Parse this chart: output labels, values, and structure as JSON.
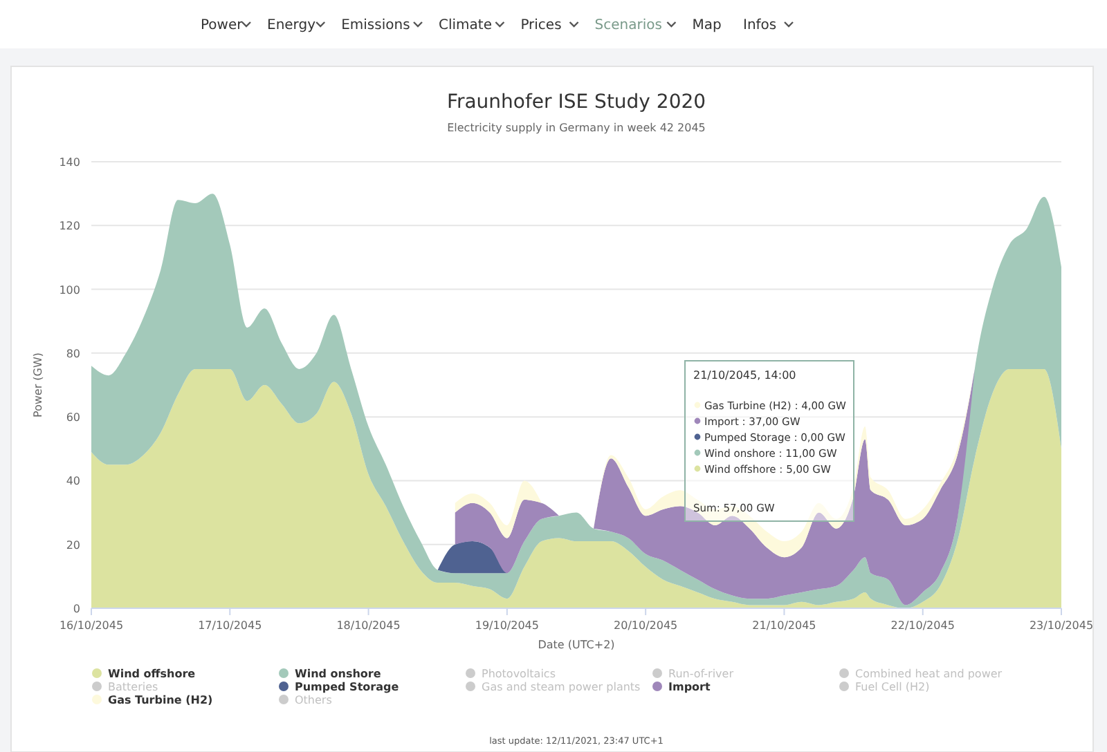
{
  "chart_data": {
    "type": "area",
    "stacked": true,
    "title": "Fraunhofer ISE Study 2020",
    "subtitle": "Electricity supply in Germany in week 42 2045",
    "xlabel": "Date (UTC+2)",
    "ylabel": "Power (GW)",
    "x": [
      "2045-10-16T00:00",
      "2045-10-16T03:00",
      "2045-10-16T06:00",
      "2045-10-16T09:00",
      "2045-10-16T12:00",
      "2045-10-16T15:00",
      "2045-10-16T18:00",
      "2045-10-16T21:00",
      "2045-10-17T00:00",
      "2045-10-17T03:00",
      "2045-10-17T06:00",
      "2045-10-17T09:00",
      "2045-10-17T12:00",
      "2045-10-17T15:00",
      "2045-10-17T18:00",
      "2045-10-17T21:00",
      "2045-10-18T00:00",
      "2045-10-18T03:00",
      "2045-10-18T06:00",
      "2045-10-18T09:00",
      "2045-10-18T12:00",
      "2045-10-18T15:00",
      "2045-10-18T18:00",
      "2045-10-18T21:00",
      "2045-10-19T00:00",
      "2045-10-19T03:00",
      "2045-10-19T06:00",
      "2045-10-19T09:00",
      "2045-10-19T12:00",
      "2045-10-19T15:00",
      "2045-10-19T18:00",
      "2045-10-19T21:00",
      "2045-10-20T00:00",
      "2045-10-20T03:00",
      "2045-10-20T06:00",
      "2045-10-20T09:00",
      "2045-10-20T12:00",
      "2045-10-20T15:00",
      "2045-10-20T18:00",
      "2045-10-20T21:00",
      "2045-10-21T00:00",
      "2045-10-21T03:00",
      "2045-10-21T06:00",
      "2045-10-21T09:00",
      "2045-10-21T12:00",
      "2045-10-21T14:00",
      "2045-10-21T15:00",
      "2045-10-21T18:00",
      "2045-10-21T21:00",
      "2045-10-22T00:00",
      "2045-10-22T03:00",
      "2045-10-22T06:00",
      "2045-10-22T09:00",
      "2045-10-22T12:00",
      "2045-10-22T15:00",
      "2045-10-22T18:00",
      "2045-10-22T21:00",
      "2045-10-23T00:00"
    ],
    "series": [
      {
        "name": "Wind offshore",
        "color": "#dce3a0",
        "values": [
          49,
          45,
          45,
          48,
          55,
          67,
          75,
          75,
          75,
          65,
          70,
          64,
          58,
          61,
          71,
          61,
          42,
          32,
          21,
          12,
          8,
          8,
          7,
          6,
          3,
          13,
          21,
          22,
          21,
          21,
          21,
          18,
          13,
          9,
          7,
          5,
          3,
          2,
          1,
          1,
          1,
          2,
          1,
          2,
          3,
          5,
          3,
          1,
          0,
          2,
          7,
          21,
          47,
          67,
          75,
          75,
          75,
          50
        ]
      },
      {
        "name": "Wind onshore",
        "color": "#a3c9ba",
        "values": [
          27,
          28,
          35,
          43,
          51,
          61,
          52,
          55,
          39,
          23,
          24,
          19,
          17,
          19,
          21,
          14,
          15,
          13,
          11,
          9,
          4,
          3,
          4,
          5,
          8,
          8,
          7,
          7,
          9,
          4,
          3,
          4,
          4,
          6,
          5,
          4,
          3,
          2,
          2,
          2,
          3,
          3,
          5,
          5,
          9,
          11,
          8,
          8,
          1,
          3,
          4,
          7,
          28,
          33,
          39,
          44,
          54,
          57
        ]
      },
      {
        "name": "Photovoltaics",
        "color": "#cccccc",
        "values": [
          null,
          null,
          null,
          null,
          null,
          null,
          null,
          null,
          null,
          null,
          null,
          null,
          null,
          null,
          null,
          null,
          null,
          null,
          null,
          null,
          null,
          null,
          null,
          null,
          null,
          null,
          null,
          null,
          null,
          null,
          null,
          null,
          null,
          null,
          null,
          null,
          null,
          null,
          null,
          null,
          null,
          null,
          null,
          null,
          null,
          null,
          null,
          null,
          null,
          null,
          null,
          null,
          null,
          null,
          null,
          null,
          null,
          null
        ]
      },
      {
        "name": "Run-of-river",
        "color": "#cccccc",
        "values": [
          null,
          null,
          null,
          null,
          null,
          null,
          null,
          null,
          null,
          null,
          null,
          null,
          null,
          null,
          null,
          null,
          null,
          null,
          null,
          null,
          null,
          null,
          null,
          null,
          null,
          null,
          null,
          null,
          null,
          null,
          null,
          null,
          null,
          null,
          null,
          null,
          null,
          null,
          null,
          null,
          null,
          null,
          null,
          null,
          null,
          null,
          null,
          null,
          null,
          null,
          null,
          null,
          null,
          null,
          null,
          null,
          null,
          null
        ]
      },
      {
        "name": "Combined heat and power",
        "color": "#cccccc",
        "values": [
          null,
          null,
          null,
          null,
          null,
          null,
          null,
          null,
          null,
          null,
          null,
          null,
          null,
          null,
          null,
          null,
          null,
          null,
          null,
          null,
          null,
          null,
          null,
          null,
          null,
          null,
          null,
          null,
          null,
          null,
          null,
          null,
          null,
          null,
          null,
          null,
          null,
          null,
          null,
          null,
          null,
          null,
          null,
          null,
          null,
          null,
          null,
          null,
          null,
          null,
          null,
          null,
          null,
          null,
          null,
          null,
          null,
          null
        ]
      },
      {
        "name": "Batteries",
        "color": "#cccccc",
        "values": [
          null,
          null,
          null,
          null,
          null,
          null,
          null,
          null,
          null,
          null,
          null,
          null,
          null,
          null,
          null,
          null,
          null,
          null,
          null,
          null,
          null,
          null,
          null,
          null,
          null,
          null,
          null,
          null,
          null,
          null,
          null,
          null,
          null,
          null,
          null,
          null,
          null,
          null,
          null,
          null,
          null,
          null,
          null,
          null,
          null,
          null,
          null,
          null,
          null,
          null,
          null,
          null,
          null,
          null,
          null,
          null,
          null,
          null
        ]
      },
      {
        "name": "Pumped Storage",
        "color": "#4f6291",
        "values": [
          null,
          null,
          null,
          null,
          null,
          null,
          null,
          null,
          null,
          null,
          null,
          null,
          null,
          null,
          null,
          null,
          null,
          null,
          null,
          null,
          0,
          9,
          10,
          8,
          0,
          null,
          null,
          null,
          null,
          null,
          null,
          null,
          null,
          null,
          null,
          null,
          null,
          null,
          null,
          null,
          null,
          null,
          null,
          null,
          null,
          null,
          null,
          null,
          null,
          null,
          null,
          null,
          null,
          null,
          null,
          null,
          null,
          null
        ]
      },
      {
        "name": "Gas and steam power plants",
        "color": "#cccccc",
        "values": [
          null,
          null,
          null,
          null,
          null,
          null,
          null,
          null,
          null,
          null,
          null,
          null,
          null,
          null,
          null,
          null,
          null,
          null,
          null,
          null,
          null,
          null,
          null,
          null,
          null,
          null,
          null,
          null,
          null,
          null,
          null,
          null,
          null,
          null,
          null,
          null,
          null,
          null,
          null,
          null,
          null,
          null,
          null,
          null,
          null,
          null,
          null,
          null,
          null,
          null,
          null,
          null,
          null,
          null,
          null,
          null,
          null,
          null
        ]
      },
      {
        "name": "Import",
        "color": "#9f87ba",
        "values": [
          null,
          null,
          null,
          null,
          null,
          null,
          null,
          null,
          null,
          null,
          null,
          null,
          null,
          null,
          null,
          null,
          null,
          null,
          null,
          null,
          null,
          10,
          12,
          11,
          11,
          13,
          5,
          0,
          null,
          0,
          23,
          16,
          12,
          16,
          20,
          21,
          20,
          25,
          22,
          16,
          12,
          14,
          24,
          18,
          23,
          37,
          26,
          25,
          25,
          23,
          26,
          20,
          0,
          null,
          null,
          null,
          null,
          null
        ]
      },
      {
        "name": "Fuel Cell (H2)",
        "color": "#cccccc",
        "values": [
          null,
          null,
          null,
          null,
          null,
          null,
          null,
          null,
          null,
          null,
          null,
          null,
          null,
          null,
          null,
          null,
          null,
          null,
          null,
          null,
          null,
          null,
          null,
          null,
          null,
          null,
          null,
          null,
          null,
          null,
          null,
          null,
          null,
          null,
          null,
          null,
          null,
          null,
          null,
          null,
          null,
          null,
          null,
          null,
          null,
          null,
          null,
          null,
          null,
          null,
          null,
          null,
          null,
          null,
          null,
          null,
          null,
          null
        ]
      },
      {
        "name": "Gas Turbine (H2)",
        "color": "#fdf9dc",
        "values": [
          null,
          null,
          null,
          null,
          null,
          null,
          null,
          null,
          null,
          null,
          null,
          null,
          null,
          null,
          null,
          null,
          null,
          null,
          null,
          null,
          null,
          3,
          3,
          3,
          4,
          6,
          0,
          null,
          null,
          0,
          1,
          3,
          2,
          4,
          5,
          4,
          5,
          3,
          4,
          5,
          5,
          5,
          3,
          3,
          3,
          4,
          4,
          3,
          2,
          3,
          2,
          2,
          0,
          null,
          null,
          null,
          null,
          null
        ]
      },
      {
        "name": "Others",
        "color": "#cccccc",
        "values": [
          null,
          null,
          null,
          null,
          null,
          null,
          null,
          null,
          null,
          null,
          null,
          null,
          null,
          null,
          null,
          null,
          null,
          null,
          null,
          null,
          null,
          null,
          null,
          null,
          null,
          null,
          null,
          null,
          null,
          null,
          null,
          null,
          null,
          null,
          null,
          null,
          null,
          null,
          null,
          null,
          null,
          null,
          null,
          null,
          null,
          null,
          null,
          null,
          null,
          null,
          null,
          null,
          null,
          null,
          null,
          null,
          null,
          null
        ]
      }
    ],
    "xlim": [
      "2045-10-16T00:00",
      "2045-10-23T00:00"
    ],
    "xticks": [
      {
        "value": "2045-10-16",
        "label": "16/10/2045"
      },
      {
        "value": "2045-10-17",
        "label": "17/10/2045"
      },
      {
        "value": "2045-10-18",
        "label": "18/10/2045"
      },
      {
        "value": "2045-10-19",
        "label": "19/10/2045"
      },
      {
        "value": "2045-10-20",
        "label": "20/10/2045"
      },
      {
        "value": "2045-10-21",
        "label": "21/10/2045"
      },
      {
        "value": "2045-10-22",
        "label": "22/10/2045"
      },
      {
        "value": "2045-10-23",
        "label": "23/10/2045"
      }
    ],
    "ylim": [
      0,
      140
    ],
    "yticks": [
      0,
      20,
      40,
      60,
      80,
      100,
      120,
      140
    ],
    "grid": "y",
    "legend": "bottom",
    "annotations": [
      "21/10/2045, 14:00",
      "Gas Turbine (H2) : 4,00 GW",
      "Import : 37,00 GW",
      "Pumped Storage : 0,00 GW",
      "Wind onshore : 11,00 GW",
      "Wind offshore : 5,00 GW",
      "Sum: 57,00 GW",
      "last update: 12/11/2021, 23:47 UTC+1",
      "Power",
      "Energy",
      "Emissions",
      "Climate",
      "Prices",
      "Scenarios",
      "Map",
      "Infos"
    ]
  }
}
